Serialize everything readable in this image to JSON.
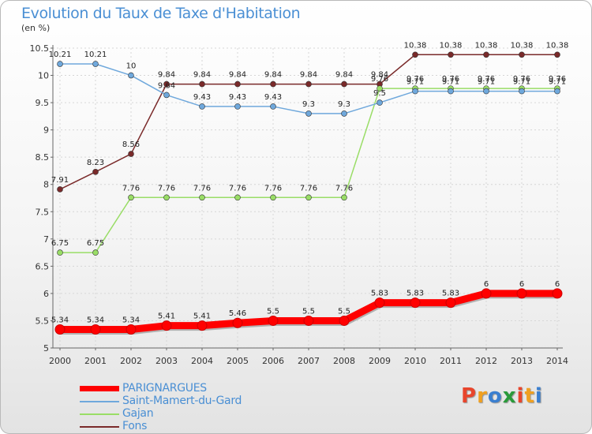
{
  "header": {
    "title": "Evolution du Taux de Taxe d'Habitation",
    "subtitle": "(en %)"
  },
  "logo": {
    "text": "Proxiti",
    "colors": [
      "#e8452c",
      "#f0a020",
      "#3a7fd0",
      "#2a9a3a",
      "#e8452c",
      "#f0a020",
      "#3a7fd0"
    ]
  },
  "chart_data": {
    "type": "line",
    "title": "Evolution du Taux de Taxe d'Habitation",
    "subtitle": "(en %)",
    "xlabel": "",
    "ylabel": "",
    "categories": [
      "2000",
      "2001",
      "2002",
      "2003",
      "2004",
      "2005",
      "2006",
      "2007",
      "2008",
      "2009",
      "2010",
      "2011",
      "2012",
      "2013",
      "2014"
    ],
    "ylim": [
      5,
      10.5
    ],
    "yticks": [
      5,
      5.5,
      6,
      6.5,
      7,
      7.5,
      8,
      8.5,
      9,
      9.5,
      10,
      10.5
    ],
    "legend_position": "bottom-left",
    "series": [
      {
        "name": "PARIGNARGUES",
        "color": "#ff0000",
        "values": [
          5.34,
          5.34,
          5.34,
          5.41,
          5.41,
          5.46,
          5.5,
          5.5,
          5.5,
          5.83,
          5.83,
          5.83,
          6,
          6,
          6
        ],
        "labels": [
          "5.34",
          "5.34",
          "5.34",
          "5.41",
          "5.41",
          "5.46",
          "5.5",
          "5.5",
          "5.5",
          "5.83",
          "5.83",
          "5.83",
          "6",
          "6",
          "6"
        ]
      },
      {
        "name": "Saint-Mamert-du-Gard",
        "color": "#6fa8dc",
        "values": [
          10.21,
          10.21,
          10,
          9.64,
          9.43,
          9.43,
          9.43,
          9.3,
          9.3,
          9.5,
          9.71,
          9.71,
          9.71,
          9.71,
          9.71
        ],
        "labels": [
          "10.21",
          "10.21",
          "10",
          "9.64",
          "9.43",
          "9.43",
          "9.43",
          "9.3",
          "9.3",
          "9.5",
          "9.71",
          "9.71",
          "9.71",
          "9.71",
          "9.71"
        ]
      },
      {
        "name": "Gajan",
        "color": "#99dd66",
        "values": [
          6.75,
          6.75,
          7.76,
          7.76,
          7.76,
          7.76,
          7.76,
          7.76,
          7.76,
          9.76,
          9.76,
          9.76,
          9.76,
          9.76,
          9.76
        ],
        "labels": [
          "6.75",
          "6.75",
          "7.76",
          "7.76",
          "7.76",
          "7.76",
          "7.76",
          "7.76",
          "7.76",
          "9.76",
          "9.76",
          "9.76",
          "9.76",
          "9.76",
          "9.76"
        ]
      },
      {
        "name": "Fons",
        "color": "#7a2a2a",
        "values": [
          7.91,
          8.23,
          8.56,
          9.84,
          9.84,
          9.84,
          9.84,
          9.84,
          9.84,
          9.84,
          10.38,
          10.38,
          10.38,
          10.38,
          10.38
        ],
        "labels": [
          "7.91",
          "8.23",
          "8.56",
          "9.84",
          "9.84",
          "9.84",
          "9.84",
          "9.84",
          "9.84",
          "9.84",
          "10.38",
          "10.38",
          "10.38",
          "10.38",
          "10.38"
        ]
      }
    ]
  }
}
